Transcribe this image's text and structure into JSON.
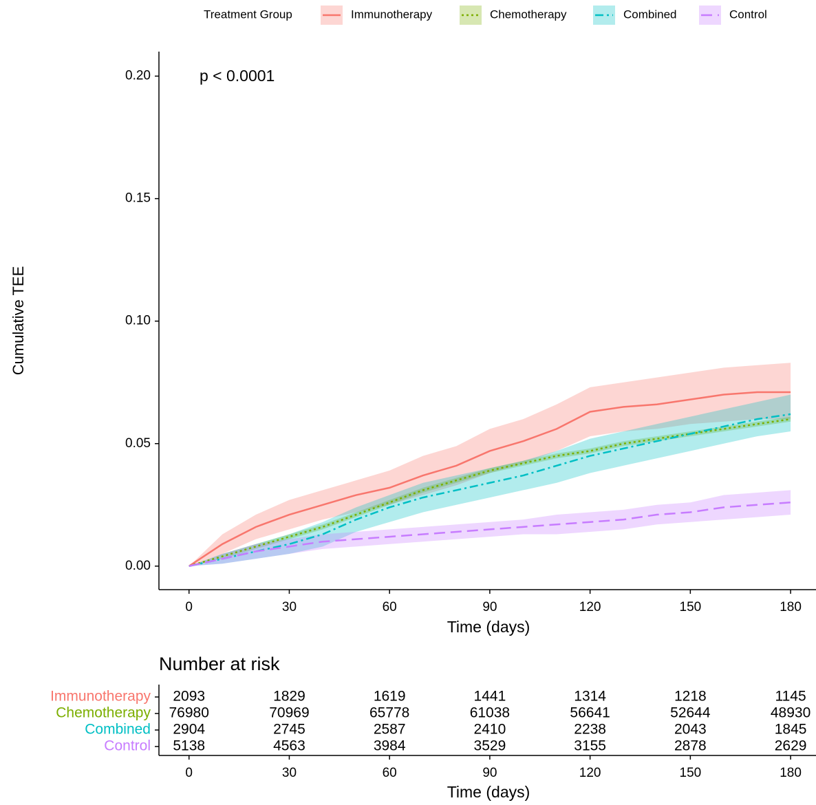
{
  "chart_data": [
    {
      "type": "line",
      "legend_title": "Treatment Group",
      "legend": "top",
      "annotation": "p < 0.0001",
      "xlabel": "Time (days)",
      "ylabel": "Cumulative TEE",
      "xlim": [
        -9,
        187.6
      ],
      "ylim": [
        -0.0096,
        0.21
      ],
      "xticks": [
        0,
        30,
        60,
        90,
        120,
        150,
        180
      ],
      "yticks": [
        {
          "value": 0,
          "label": "0.00"
        },
        {
          "value": 0.05,
          "label": "0.05"
        },
        {
          "value": 0.1,
          "label": "0.10"
        },
        {
          "value": 0.15,
          "label": "0.15"
        },
        {
          "value": 0.2,
          "label": "0.20"
        }
      ],
      "x": [
        0,
        10,
        20,
        30,
        40,
        50,
        60,
        70,
        80,
        90,
        100,
        110,
        120,
        130,
        140,
        150,
        160,
        170,
        180
      ],
      "series": [
        {
          "name": "Immunotherapy",
          "color": "#F8766D",
          "dash": "solid",
          "values": [
            0,
            0.009,
            0.016,
            0.021,
            0.025,
            0.029,
            0.032,
            0.037,
            0.041,
            0.047,
            0.051,
            0.056,
            0.063,
            0.065,
            0.066,
            0.068,
            0.07,
            0.071,
            0.071
          ],
          "lower": [
            0,
            0.005,
            0.011,
            0.015,
            0.019,
            0.022,
            0.025,
            0.029,
            0.033,
            0.038,
            0.042,
            0.047,
            0.053,
            0.055,
            0.056,
            0.058,
            0.059,
            0.06,
            0.06
          ],
          "upper": [
            0,
            0.013,
            0.021,
            0.027,
            0.031,
            0.035,
            0.039,
            0.045,
            0.049,
            0.056,
            0.06,
            0.066,
            0.073,
            0.075,
            0.077,
            0.079,
            0.081,
            0.082,
            0.083
          ]
        },
        {
          "name": "Chemotherapy",
          "color": "#7CAE00",
          "dash": "dotted",
          "values": [
            0,
            0.004,
            0.008,
            0.012,
            0.016,
            0.021,
            0.026,
            0.031,
            0.035,
            0.039,
            0.042,
            0.045,
            0.047,
            0.05,
            0.052,
            0.054,
            0.056,
            0.058,
            0.06
          ],
          "lower": [
            0,
            0.003,
            0.007,
            0.011,
            0.015,
            0.02,
            0.025,
            0.03,
            0.034,
            0.038,
            0.041,
            0.044,
            0.046,
            0.049,
            0.051,
            0.053,
            0.055,
            0.057,
            0.059
          ],
          "upper": [
            0,
            0.005,
            0.009,
            0.013,
            0.017,
            0.022,
            0.027,
            0.032,
            0.036,
            0.04,
            0.043,
            0.046,
            0.048,
            0.051,
            0.053,
            0.055,
            0.057,
            0.059,
            0.061
          ]
        },
        {
          "name": "Combined",
          "color": "#00BFC4",
          "dash": "dotdash",
          "values": [
            0,
            0.003,
            0.006,
            0.009,
            0.013,
            0.019,
            0.024,
            0.028,
            0.031,
            0.034,
            0.037,
            0.041,
            0.045,
            0.048,
            0.051,
            0.054,
            0.057,
            0.06,
            0.062
          ],
          "lower": [
            0,
            0.001,
            0.003,
            0.005,
            0.008,
            0.014,
            0.018,
            0.022,
            0.025,
            0.028,
            0.031,
            0.034,
            0.038,
            0.041,
            0.044,
            0.047,
            0.05,
            0.053,
            0.055
          ],
          "upper": [
            0,
            0.005,
            0.009,
            0.013,
            0.018,
            0.024,
            0.029,
            0.034,
            0.037,
            0.04,
            0.043,
            0.047,
            0.052,
            0.055,
            0.058,
            0.061,
            0.064,
            0.067,
            0.07
          ]
        },
        {
          "name": "Control",
          "color": "#C77CFF",
          "dash": "longdash",
          "values": [
            0,
            0.003,
            0.006,
            0.008,
            0.01,
            0.011,
            0.012,
            0.013,
            0.014,
            0.015,
            0.016,
            0.017,
            0.018,
            0.019,
            0.021,
            0.022,
            0.024,
            0.025,
            0.026
          ],
          "lower": [
            0,
            0.001,
            0.003,
            0.005,
            0.007,
            0.008,
            0.009,
            0.01,
            0.011,
            0.012,
            0.013,
            0.013,
            0.014,
            0.015,
            0.017,
            0.018,
            0.019,
            0.02,
            0.021
          ],
          "upper": [
            0,
            0.005,
            0.009,
            0.011,
            0.013,
            0.014,
            0.015,
            0.016,
            0.017,
            0.018,
            0.019,
            0.021,
            0.022,
            0.023,
            0.025,
            0.026,
            0.029,
            0.03,
            0.031
          ]
        }
      ]
    },
    {
      "type": "table",
      "title": "Number at risk",
      "xlabel": "Time (days)",
      "xlim": [
        -9,
        187.6
      ],
      "xticks": [
        0,
        30,
        60,
        90,
        120,
        150,
        180
      ],
      "rows": [
        {
          "name": "Immunotherapy",
          "color": "#F8766D",
          "values": [
            2093,
            1829,
            1619,
            1441,
            1314,
            1218,
            1145
          ]
        },
        {
          "name": "Chemotherapy",
          "color": "#7CAE00",
          "values": [
            76980,
            70969,
            65778,
            61038,
            56641,
            52644,
            48930
          ]
        },
        {
          "name": "Combined",
          "color": "#00BFC4",
          "values": [
            2904,
            2745,
            2587,
            2410,
            2238,
            2043,
            1845
          ]
        },
        {
          "name": "Control",
          "color": "#C77CFF",
          "values": [
            5138,
            4563,
            3984,
            3529,
            3155,
            2878,
            2629
          ]
        }
      ]
    }
  ]
}
